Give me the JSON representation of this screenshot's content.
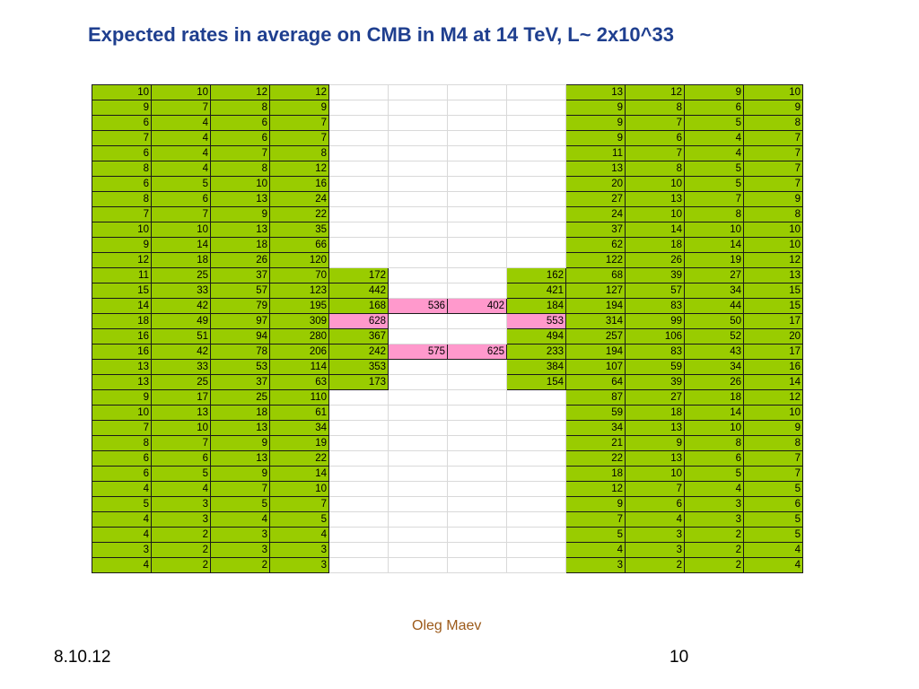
{
  "slide": {
    "title": "Expected rates in average on CMB in M4 at 14 TeV, L~ 2x10^33",
    "author": "Oleg Maev",
    "date": "8.10.12",
    "page": "10"
  },
  "colors": {
    "green": "#99cc00",
    "pink": "#ff99cc",
    "title": "#1f3f8f",
    "author": "#9c5a1a"
  },
  "table": {
    "pink_cells": [
      [
        14,
        5
      ],
      [
        14,
        6
      ],
      [
        15,
        4
      ],
      [
        15,
        7
      ],
      [
        17,
        5
      ],
      [
        17,
        6
      ]
    ],
    "rows": [
      [
        "10",
        "10",
        "12",
        "12",
        "",
        "",
        "",
        "",
        "13",
        "12",
        "9",
        "10"
      ],
      [
        "9",
        "7",
        "8",
        "9",
        "",
        "",
        "",
        "",
        "9",
        "8",
        "6",
        "9"
      ],
      [
        "6",
        "4",
        "6",
        "7",
        "",
        "",
        "",
        "",
        "9",
        "7",
        "5",
        "8"
      ],
      [
        "7",
        "4",
        "6",
        "7",
        "",
        "",
        "",
        "",
        "9",
        "6",
        "4",
        "7"
      ],
      [
        "6",
        "4",
        "7",
        "8",
        "",
        "",
        "",
        "",
        "11",
        "7",
        "4",
        "7"
      ],
      [
        "8",
        "4",
        "8",
        "12",
        "",
        "",
        "",
        "",
        "13",
        "8",
        "5",
        "7"
      ],
      [
        "6",
        "5",
        "10",
        "16",
        "",
        "",
        "",
        "",
        "20",
        "10",
        "5",
        "7"
      ],
      [
        "8",
        "6",
        "13",
        "24",
        "",
        "",
        "",
        "",
        "27",
        "13",
        "7",
        "9"
      ],
      [
        "7",
        "7",
        "9",
        "22",
        "",
        "",
        "",
        "",
        "24",
        "10",
        "8",
        "8"
      ],
      [
        "10",
        "10",
        "13",
        "35",
        "",
        "",
        "",
        "",
        "37",
        "14",
        "10",
        "10"
      ],
      [
        "9",
        "14",
        "18",
        "66",
        "",
        "",
        "",
        "",
        "62",
        "18",
        "14",
        "10"
      ],
      [
        "12",
        "18",
        "26",
        "120",
        "",
        "",
        "",
        "",
        "122",
        "26",
        "19",
        "12"
      ],
      [
        "11",
        "25",
        "37",
        "70",
        "172",
        "",
        "",
        "162",
        "68",
        "39",
        "27",
        "13"
      ],
      [
        "15",
        "33",
        "57",
        "123",
        "442",
        "",
        "",
        "421",
        "127",
        "57",
        "34",
        "15"
      ],
      [
        "14",
        "42",
        "79",
        "195",
        "168",
        "536",
        "402",
        "184",
        "194",
        "83",
        "44",
        "15"
      ],
      [
        "18",
        "49",
        "97",
        "309",
        "628",
        "",
        "",
        "553",
        "314",
        "99",
        "50",
        "17"
      ],
      [
        "16",
        "51",
        "94",
        "280",
        "367",
        "",
        "",
        "494",
        "257",
        "106",
        "52",
        "20"
      ],
      [
        "16",
        "42",
        "78",
        "206",
        "242",
        "575",
        "625",
        "233",
        "194",
        "83",
        "43",
        "17"
      ],
      [
        "13",
        "33",
        "53",
        "114",
        "353",
        "",
        "",
        "384",
        "107",
        "59",
        "34",
        "16"
      ],
      [
        "13",
        "25",
        "37",
        "63",
        "173",
        "",
        "",
        "154",
        "64",
        "39",
        "26",
        "14"
      ],
      [
        "9",
        "17",
        "25",
        "110",
        "",
        "",
        "",
        "",
        "87",
        "27",
        "18",
        "12"
      ],
      [
        "10",
        "13",
        "18",
        "61",
        "",
        "",
        "",
        "",
        "59",
        "18",
        "14",
        "10"
      ],
      [
        "7",
        "10",
        "13",
        "34",
        "",
        "",
        "",
        "",
        "34",
        "13",
        "10",
        "9"
      ],
      [
        "8",
        "7",
        "9",
        "19",
        "",
        "",
        "",
        "",
        "21",
        "9",
        "8",
        "8"
      ],
      [
        "6",
        "6",
        "13",
        "22",
        "",
        "",
        "",
        "",
        "22",
        "13",
        "6",
        "7"
      ],
      [
        "6",
        "5",
        "9",
        "14",
        "",
        "",
        "",
        "",
        "18",
        "10",
        "5",
        "7"
      ],
      [
        "4",
        "4",
        "7",
        "10",
        "",
        "",
        "",
        "",
        "12",
        "7",
        "4",
        "5"
      ],
      [
        "5",
        "3",
        "5",
        "7",
        "",
        "",
        "",
        "",
        "9",
        "6",
        "3",
        "6"
      ],
      [
        "4",
        "3",
        "4",
        "5",
        "",
        "",
        "",
        "",
        "7",
        "4",
        "3",
        "5"
      ],
      [
        "4",
        "2",
        "3",
        "4",
        "",
        "",
        "",
        "",
        "5",
        "3",
        "2",
        "5"
      ],
      [
        "3",
        "2",
        "3",
        "3",
        "",
        "",
        "",
        "",
        "4",
        "3",
        "2",
        "4"
      ],
      [
        "4",
        "2",
        "2",
        "3",
        "",
        "",
        "",
        "",
        "3",
        "2",
        "2",
        "4"
      ]
    ]
  }
}
